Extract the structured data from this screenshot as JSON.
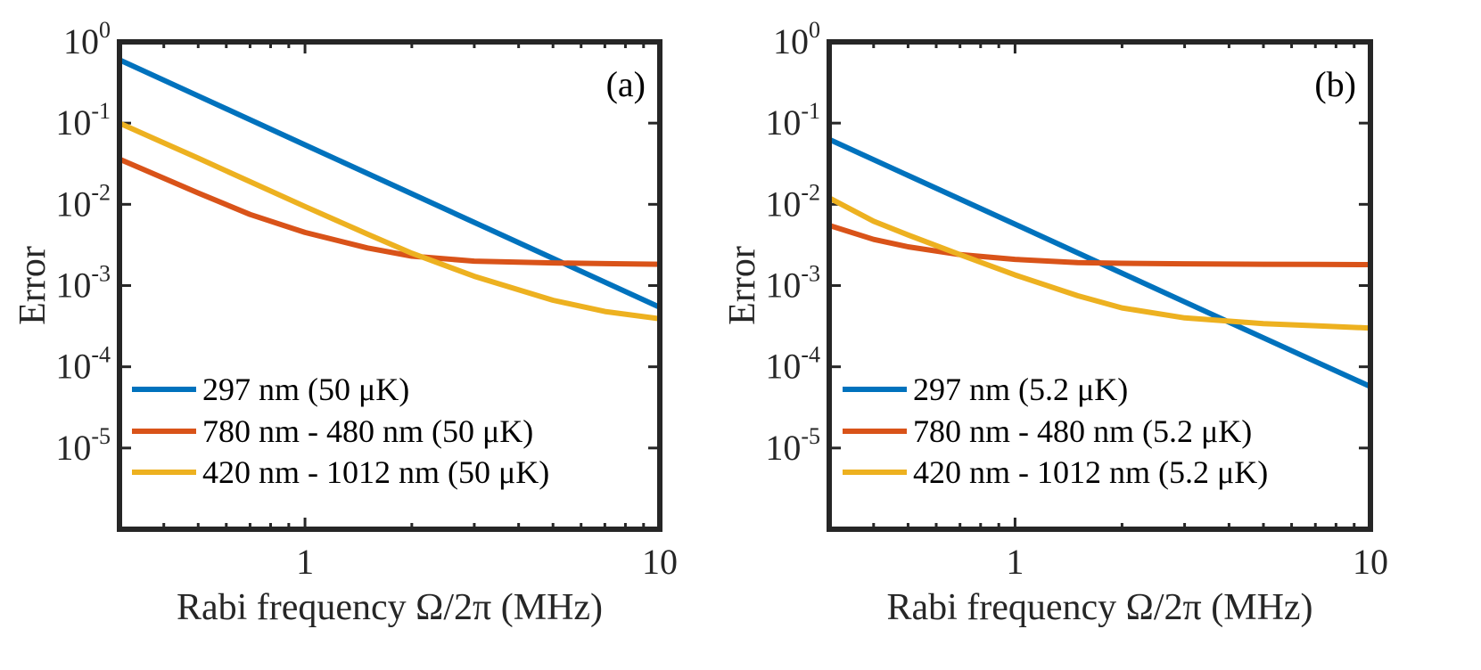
{
  "chart_data": [
    {
      "type": "line",
      "panel_label": "(a)",
      "xscale": "log",
      "yscale": "log",
      "xlim": [
        0.3,
        10
      ],
      "ylim": [
        1e-06,
        1
      ],
      "xlabel": "Rabi frequency Ω/2π (MHz)",
      "ylabel": "Error",
      "xticks": [
        {
          "value": 1,
          "label": "1"
        },
        {
          "value": 10,
          "label": "10"
        }
      ],
      "yticks": [
        {
          "value": 1,
          "base": "10",
          "exp": "0"
        },
        {
          "value": 0.1,
          "base": "10",
          "exp": "-1"
        },
        {
          "value": 0.01,
          "base": "10",
          "exp": "-2"
        },
        {
          "value": 0.001,
          "base": "10",
          "exp": "-3"
        },
        {
          "value": 0.0001,
          "base": "10",
          "exp": "-4"
        },
        {
          "value": 1e-05,
          "base": "10",
          "exp": "-5"
        }
      ],
      "legend_location": "lower-left",
      "series": [
        {
          "name": "297 nm (50 μK)",
          "color": "#0072BD",
          "x": [
            0.3,
            0.5,
            1,
            2,
            3,
            5,
            7,
            10
          ],
          "y": [
            0.6,
            0.216,
            0.054,
            0.0135,
            0.006,
            0.00216,
            0.0011,
            0.00054
          ]
        },
        {
          "name": "780 nm - 480 nm (50 μK)",
          "color": "#D95319",
          "x": [
            0.3,
            0.4,
            0.5,
            0.7,
            1,
            1.5,
            2,
            3,
            5,
            7,
            10
          ],
          "y": [
            0.036,
            0.021,
            0.0138,
            0.0075,
            0.0045,
            0.0029,
            0.0023,
            0.002,
            0.0019,
            0.00186,
            0.00183
          ]
        },
        {
          "name": "420 nm - 1012 nm (50 μK)",
          "color": "#EDB120",
          "x": [
            0.3,
            0.4,
            0.5,
            0.7,
            1,
            1.5,
            2,
            3,
            5,
            7,
            10
          ],
          "y": [
            0.1,
            0.057,
            0.037,
            0.019,
            0.0094,
            0.0043,
            0.0025,
            0.0013,
            0.00066,
            0.00048,
            0.00039
          ]
        }
      ]
    },
    {
      "type": "line",
      "panel_label": "(b)",
      "xscale": "log",
      "yscale": "log",
      "xlim": [
        0.3,
        10
      ],
      "ylim": [
        1e-06,
        1
      ],
      "xlabel": "Rabi frequency Ω/2π (MHz)",
      "ylabel": "Error",
      "xticks": [
        {
          "value": 1,
          "label": "1"
        },
        {
          "value": 10,
          "label": "10"
        }
      ],
      "yticks": [
        {
          "value": 1,
          "base": "10",
          "exp": "0"
        },
        {
          "value": 0.1,
          "base": "10",
          "exp": "-1"
        },
        {
          "value": 0.01,
          "base": "10",
          "exp": "-2"
        },
        {
          "value": 0.001,
          "base": "10",
          "exp": "-3"
        },
        {
          "value": 0.0001,
          "base": "10",
          "exp": "-4"
        },
        {
          "value": 1e-05,
          "base": "10",
          "exp": "-5"
        }
      ],
      "legend_location": "lower-left",
      "series": [
        {
          "name": "297 nm (5.2 μK)",
          "color": "#0072BD",
          "x": [
            0.3,
            0.5,
            1,
            2,
            3,
            5,
            7,
            10
          ],
          "y": [
            0.063,
            0.0227,
            0.0057,
            0.00142,
            0.00063,
            0.000227,
            0.000116,
            5.7e-05
          ]
        },
        {
          "name": "780 nm - 480 nm (5.2 μK)",
          "color": "#D95319",
          "x": [
            0.3,
            0.4,
            0.5,
            0.7,
            1,
            1.5,
            2,
            3,
            5,
            7,
            10
          ],
          "y": [
            0.0055,
            0.0037,
            0.003,
            0.0024,
            0.0021,
            0.00192,
            0.00188,
            0.00185,
            0.00183,
            0.00182,
            0.00181
          ]
        },
        {
          "name": "420 nm - 1012 nm (5.2 μK)",
          "color": "#EDB120",
          "x": [
            0.3,
            0.4,
            0.5,
            0.7,
            1,
            1.5,
            2,
            3,
            5,
            7,
            10
          ],
          "y": [
            0.012,
            0.0062,
            0.0042,
            0.0024,
            0.00135,
            0.00075,
            0.00053,
            0.0004,
            0.00034,
            0.00032,
            0.0003
          ]
        }
      ]
    }
  ]
}
